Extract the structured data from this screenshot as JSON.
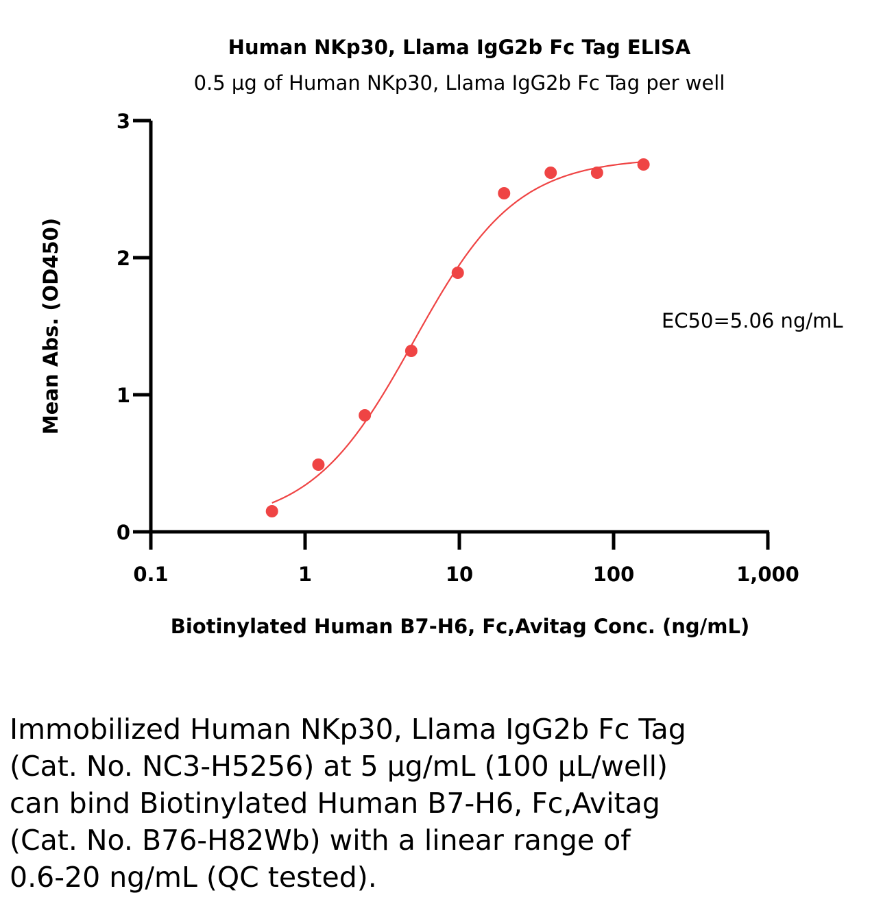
{
  "chart_data": {
    "type": "scatter",
    "title": "Human NKp30, Llama IgG2b Fc Tag ELISA",
    "subtitle": "0.5 µg of Human NKp30, Llama IgG2b Fc Tag per well",
    "xlabel": "Biotinylated Human B7-H6, Fc,Avitag Conc. (ng/mL)",
    "ylabel": "Mean Abs. (OD450)",
    "x_scale": "log",
    "xlim": [
      0.1,
      1000
    ],
    "ylim": [
      0,
      3
    ],
    "x_ticks": [
      0.1,
      1,
      10,
      100,
      1000
    ],
    "x_tick_labels": [
      "0.1",
      "1",
      "10",
      "100",
      "1,000"
    ],
    "y_ticks": [
      0,
      1,
      2,
      3
    ],
    "y_tick_labels": [
      "0",
      "1",
      "2",
      "3"
    ],
    "grid": false,
    "color": "#ef4444",
    "series": [
      {
        "x": [
          0.61,
          1.22,
          2.44,
          4.88,
          9.77,
          19.5,
          39.1,
          78.1,
          156.3
        ],
        "y": [
          0.15,
          0.49,
          0.85,
          1.32,
          1.89,
          2.47,
          2.62,
          2.62,
          2.68
        ]
      }
    ],
    "fit": {
      "model": "4PL",
      "bottom": 0.05,
      "top": 2.73,
      "ec50": 5.06,
      "hill": 1.3,
      "x_range": [
        0.61,
        156.3
      ]
    },
    "annotations": [
      "EC50=5.06 ng/mL"
    ]
  },
  "caption": {
    "lines": [
      "Immobilized Human NKp30, Llama IgG2b Fc Tag",
      "(Cat. No. NC3-H5256) at 5 µg/mL (100 µL/well)",
      "can bind Biotinylated Human B7-H6, Fc,Avitag",
      "(Cat. No. B76-H82Wb) with a linear range of",
      "0.6-20 ng/mL (QC tested)."
    ]
  }
}
